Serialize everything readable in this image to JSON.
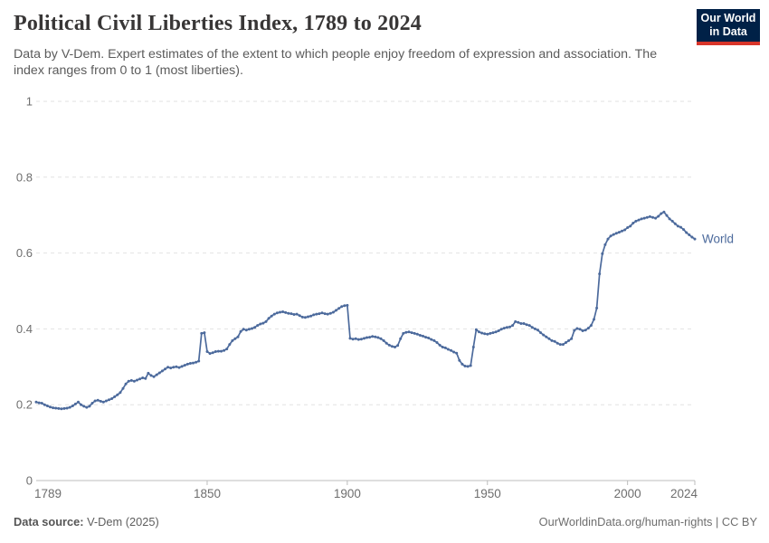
{
  "header": {
    "title": "Political Civil Liberties Index, 1789 to 2024",
    "subtitle": "Data by V-Dem. Expert estimates of the extent to which people enjoy freedom of expression and association. The index ranges from 0 to 1 (most liberties).",
    "logo": {
      "line1": "Our World",
      "line2": "in Data",
      "bg_color": "#002147",
      "accent_color": "#d8352a"
    }
  },
  "footer": {
    "source_label": "Data source:",
    "source_value": " V-Dem (2025)",
    "credit": "OurWorldinData.org/human-rights | CC BY"
  },
  "chart_data": {
    "type": "line",
    "title": "Political Civil Liberties Index, 1789 to 2024",
    "xlabel": "",
    "ylabel": "",
    "xlim": [
      1789,
      2024
    ],
    "ylim": [
      0,
      1
    ],
    "x_ticks": [
      1789,
      1850,
      1900,
      1950,
      2000,
      2024
    ],
    "y_ticks": [
      0,
      0.2,
      0.4,
      0.6,
      0.8,
      1
    ],
    "grid": "horizontal-dashed",
    "legend_position": "end-of-line",
    "colors": {
      "line": "#4c6a9c",
      "grid": "#e2e2e2",
      "axis": "#bcbcbc",
      "tick_text": "#6e6e6e"
    },
    "series": [
      {
        "name": "World",
        "color": "#4c6a9c",
        "x_start": 1789,
        "x_step": 1,
        "values": [
          0.207,
          0.205,
          0.204,
          0.2,
          0.197,
          0.194,
          0.192,
          0.191,
          0.19,
          0.189,
          0.19,
          0.191,
          0.193,
          0.197,
          0.202,
          0.207,
          0.2,
          0.196,
          0.193,
          0.196,
          0.204,
          0.21,
          0.212,
          0.209,
          0.207,
          0.21,
          0.213,
          0.216,
          0.221,
          0.226,
          0.232,
          0.243,
          0.255,
          0.262,
          0.264,
          0.262,
          0.265,
          0.268,
          0.271,
          0.269,
          0.283,
          0.277,
          0.274,
          0.279,
          0.284,
          0.289,
          0.294,
          0.299,
          0.297,
          0.299,
          0.3,
          0.298,
          0.301,
          0.304,
          0.307,
          0.309,
          0.31,
          0.312,
          0.315,
          0.388,
          0.39,
          0.34,
          0.335,
          0.337,
          0.34,
          0.341,
          0.341,
          0.343,
          0.347,
          0.359,
          0.369,
          0.374,
          0.379,
          0.393,
          0.399,
          0.397,
          0.399,
          0.401,
          0.404,
          0.409,
          0.413,
          0.415,
          0.419,
          0.428,
          0.434,
          0.439,
          0.442,
          0.444,
          0.445,
          0.443,
          0.441,
          0.44,
          0.438,
          0.439,
          0.435,
          0.431,
          0.43,
          0.432,
          0.434,
          0.437,
          0.439,
          0.44,
          0.442,
          0.44,
          0.439,
          0.441,
          0.444,
          0.449,
          0.454,
          0.459,
          0.461,
          0.462,
          0.375,
          0.373,
          0.374,
          0.372,
          0.373,
          0.375,
          0.377,
          0.378,
          0.38,
          0.379,
          0.377,
          0.374,
          0.369,
          0.362,
          0.357,
          0.354,
          0.352,
          0.356,
          0.374,
          0.388,
          0.391,
          0.392,
          0.39,
          0.388,
          0.386,
          0.383,
          0.381,
          0.378,
          0.376,
          0.372,
          0.369,
          0.364,
          0.357,
          0.352,
          0.35,
          0.346,
          0.343,
          0.339,
          0.336,
          0.317,
          0.307,
          0.302,
          0.301,
          0.303,
          0.352,
          0.398,
          0.392,
          0.389,
          0.387,
          0.386,
          0.388,
          0.39,
          0.392,
          0.395,
          0.399,
          0.402,
          0.404,
          0.405,
          0.409,
          0.419,
          0.417,
          0.414,
          0.414,
          0.411,
          0.409,
          0.404,
          0.4,
          0.397,
          0.39,
          0.384,
          0.379,
          0.374,
          0.369,
          0.367,
          0.362,
          0.359,
          0.359,
          0.364,
          0.369,
          0.374,
          0.396,
          0.401,
          0.399,
          0.395,
          0.397,
          0.402,
          0.409,
          0.425,
          0.455,
          0.545,
          0.598,
          0.622,
          0.637,
          0.645,
          0.649,
          0.652,
          0.655,
          0.658,
          0.661,
          0.667,
          0.671,
          0.679,
          0.684,
          0.687,
          0.69,
          0.692,
          0.694,
          0.696,
          0.694,
          0.692,
          0.697,
          0.704,
          0.708,
          0.699,
          0.69,
          0.684,
          0.677,
          0.671,
          0.668,
          0.662,
          0.654,
          0.648,
          0.642,
          0.637
        ]
      }
    ]
  }
}
